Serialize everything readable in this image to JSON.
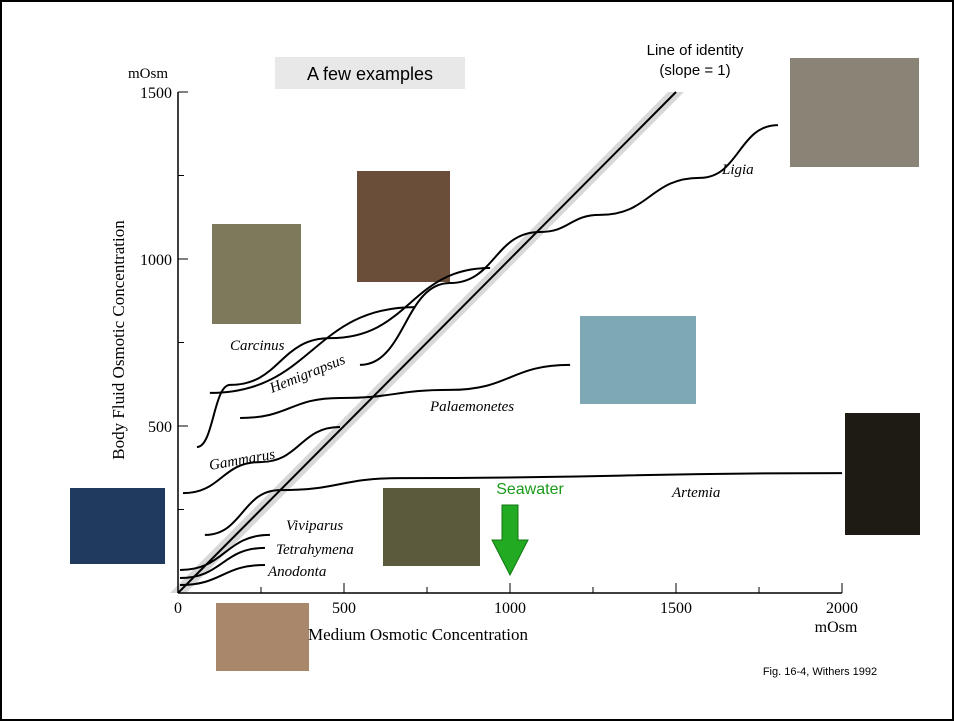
{
  "chart_data": {
    "type": "line",
    "heading": "A few examples",
    "y_unit": "mOsm",
    "x_unit": "mOsm",
    "ylabel": "Body Fluid Osmotic Concentration",
    "xlabel": "Medium Osmotic Concentration",
    "identity_note": "(slope = 1)",
    "seawater_label": "Seawater",
    "seawater_x": 1000,
    "source": "Fig. 16-4, Withers 1992",
    "xlim": [
      0,
      2000
    ],
    "ylim": [
      0,
      1500
    ],
    "xticks": [
      0,
      500,
      1000,
      1500,
      2000
    ],
    "yticks": [
      500,
      1000,
      1500
    ],
    "minor_xticks": [
      250,
      750,
      1250,
      1750
    ],
    "minor_yticks": [
      250,
      750,
      1250
    ],
    "series": [
      {
        "name": "Line of identity",
        "color": "#000000",
        "x": [
          0,
          1500
        ],
        "values": [
          0,
          1500
        ]
      },
      {
        "name": "Ligia",
        "color": "#000000",
        "x": [
          548,
          819,
          1090,
          1271,
          1572,
          1807
        ],
        "values": [
          683,
          928,
          1081,
          1132,
          1243,
          1401
        ]
      },
      {
        "name": "Carcinus",
        "color": "#000000",
        "x": [
          96,
          714
        ],
        "values": [
          599,
          856
        ]
      },
      {
        "name": "Hemigrapsus",
        "color": "#000000",
        "x": [
          57,
          157,
          458,
          940
        ],
        "values": [
          437,
          623,
          763,
          973
        ]
      },
      {
        "name": "Palaemonetes",
        "color": "#000000",
        "x": [
          187,
          488,
          819,
          1181
        ],
        "values": [
          524,
          584,
          608,
          683
        ]
      },
      {
        "name": "Gammarus",
        "color": "#000000",
        "x": [
          15,
          247,
          488
        ],
        "values": [
          299,
          392,
          497
        ]
      },
      {
        "name": "Artemia",
        "color": "#000000",
        "x": [
          81,
          307,
          669,
          2000
        ],
        "values": [
          174,
          308,
          344,
          359
        ]
      },
      {
        "name": "Viviparus",
        "color": "#000000",
        "x": [
          6,
          277
        ],
        "values": [
          69,
          174
        ]
      },
      {
        "name": "Tetrahymena",
        "color": "#000000",
        "x": [
          6,
          262
        ],
        "values": [
          45,
          135
        ]
      },
      {
        "name": "Anodonta",
        "color": "#000000",
        "x": [
          6,
          262
        ],
        "values": [
          24,
          84
        ]
      }
    ]
  }
}
